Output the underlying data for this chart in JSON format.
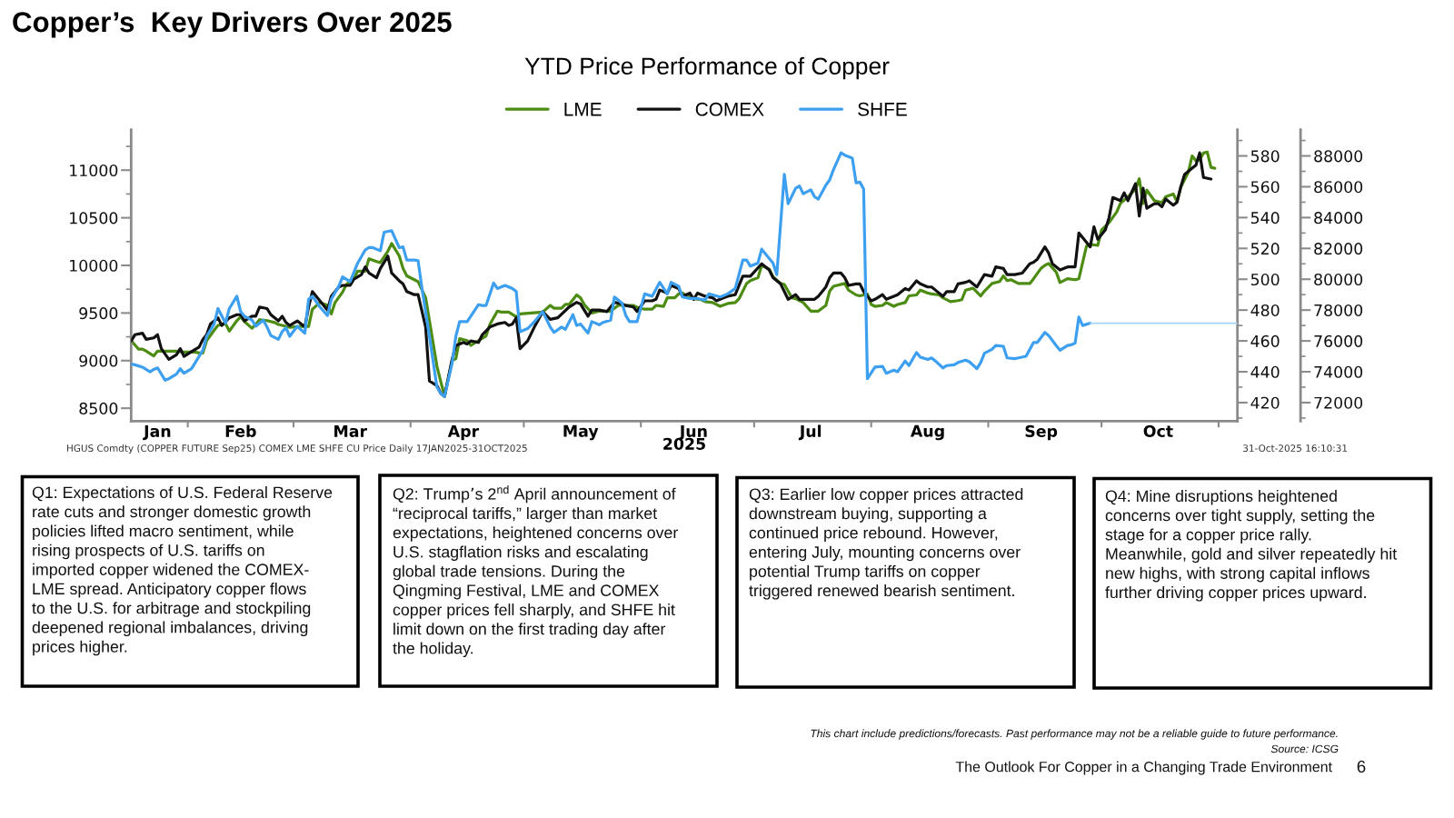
{
  "chart_data": {
    "type": "line",
    "title": "Copper’s  Key Drivers Over 2025",
    "subtitle": "YTD Price Performance of Copper",
    "xlabel": "2025",
    "legend": "top",
    "xlim": [
      "2025-01-17",
      "2025-11-06"
    ],
    "xticks": [
      {
        "value": "2025-01-24",
        "label": "Jan"
      },
      {
        "value": "2025-02-01",
        "label": null
      },
      {
        "value": "2025-02-15",
        "label": "Feb"
      },
      {
        "value": "2025-03-01",
        "label": null
      },
      {
        "value": "2025-03-16",
        "label": "Mar"
      },
      {
        "value": "2025-04-01",
        "label": null
      },
      {
        "value": "2025-04-15",
        "label": "Apr"
      },
      {
        "value": "2025-05-01",
        "label": null
      },
      {
        "value": "2025-05-16",
        "label": "May"
      },
      {
        "value": "2025-06-01",
        "label": null
      },
      {
        "value": "2025-06-15",
        "label": "Jun"
      },
      {
        "value": "2025-07-01",
        "label": null
      },
      {
        "value": "2025-07-16",
        "label": "Jul"
      },
      {
        "value": "2025-08-01",
        "label": null
      },
      {
        "value": "2025-08-16",
        "label": "Aug"
      },
      {
        "value": "2025-09-01",
        "label": null
      },
      {
        "value": "2025-09-15",
        "label": "Sep"
      },
      {
        "value": "2025-10-01",
        "label": null
      },
      {
        "value": "2025-10-16",
        "label": "Oct"
      },
      {
        "value": "2025-11-01",
        "label": null
      }
    ],
    "ylim": [
      8365,
      11425
    ],
    "yticks": [
      8500,
      {
        "value": 8750,
        "label": null
      },
      9000,
      {
        "value": 9250,
        "label": null
      },
      9500,
      {
        "value": 9750,
        "label": null
      },
      10000,
      {
        "value": 10250,
        "label": null
      },
      10500,
      {
        "value": 10750,
        "label": null
      },
      11000,
      {
        "value": 11250,
        "label": null
      }
    ],
    "y2lim": [
      408,
      597
    ],
    "y2ticks": [
      {
        "value": 410,
        "label": null
      },
      420,
      {
        "value": 430,
        "label": null
      },
      440,
      {
        "value": 450,
        "label": null
      },
      460,
      {
        "value": 470,
        "label": null
      },
      480,
      {
        "value": 490,
        "label": null
      },
      500,
      {
        "value": 510,
        "label": null
      },
      520,
      {
        "value": 530,
        "label": null
      },
      540,
      {
        "value": 550,
        "label": null
      },
      560,
      {
        "value": 570,
        "label": null
      },
      580,
      {
        "value": 590,
        "label": null
      }
    ],
    "y3lim": [
      70800,
      89700
    ],
    "y3ticks": [
      {
        "value": 71000,
        "label": null
      },
      72000,
      {
        "value": 73000,
        "label": null
      },
      74000,
      {
        "value": 75000,
        "label": null
      },
      76000,
      {
        "value": 77000,
        "label": null
      },
      78000,
      {
        "value": 79000,
        "label": null
      },
      80000,
      {
        "value": 81000,
        "label": null
      },
      82000,
      {
        "value": 83000,
        "label": null
      },
      84000,
      {
        "value": 85000,
        "label": null
      },
      86000,
      {
        "value": 87000,
        "label": null
      },
      88000,
      {
        "value": 89000,
        "label": null
      }
    ],
    "series": [
      {
        "name": "LME",
        "color": "#4d8c12",
        "axis": "y",
        "x": [
          "2025-01-17",
          "2025-01-19",
          "2025-01-20",
          "2025-01-21",
          "2025-01-23",
          "2025-01-24",
          "2025-01-26",
          "2025-01-29",
          "2025-01-31",
          "2025-02-03",
          "2025-02-04",
          "2025-02-05",
          "2025-02-06",
          "2025-02-08",
          "2025-02-09",
          "2025-02-11",
          "2025-02-12",
          "2025-02-14",
          "2025-02-15",
          "2025-02-16",
          "2025-02-18",
          "2025-02-19",
          "2025-02-20",
          "2025-02-22",
          "2025-02-24",
          "2025-02-25",
          "2025-02-27",
          "2025-02-28",
          "2025-03-03",
          "2025-03-05",
          "2025-03-06",
          "2025-03-08",
          "2025-03-10",
          "2025-03-11",
          "2025-03-12",
          "2025-03-14",
          "2025-03-15",
          "2025-03-17",
          "2025-03-18",
          "2025-03-20",
          "2025-03-21",
          "2025-03-23",
          "2025-03-24",
          "2025-03-26",
          "2025-03-27",
          "2025-03-29",
          "2025-03-30",
          "2025-03-31",
          "2025-04-02",
          "2025-04-03",
          "2025-04-05",
          "2025-04-08",
          "2025-04-09",
          "2025-04-10",
          "2025-04-12",
          "2025-04-13",
          "2025-04-14",
          "2025-04-16",
          "2025-04-17",
          "2025-04-19",
          "2025-04-21",
          "2025-04-22",
          "2025-04-24",
          "2025-04-25",
          "2025-04-27",
          "2025-04-29",
          "2025-04-30",
          "2025-05-03",
          "2025-05-06",
          "2025-05-08",
          "2025-05-09",
          "2025-05-11",
          "2025-05-12",
          "2025-05-13",
          "2025-05-15",
          "2025-05-16",
          "2025-05-17",
          "2025-05-19",
          "2025-05-21",
          "2025-05-22",
          "2025-05-24",
          "2025-05-26",
          "2025-05-28",
          "2025-05-30",
          "2025-05-31",
          "2025-06-02",
          "2025-06-04",
          "2025-06-05",
          "2025-06-07",
          "2025-06-08",
          "2025-06-10",
          "2025-06-11",
          "2025-06-12",
          "2025-06-13",
          "2025-06-15",
          "2025-06-17",
          "2025-06-18",
          "2025-06-20",
          "2025-06-22",
          "2025-06-24",
          "2025-06-26",
          "2025-06-27",
          "2025-06-29",
          "2025-06-30",
          "2025-07-02",
          "2025-07-03",
          "2025-07-05",
          "2025-07-06",
          "2025-07-08",
          "2025-07-09",
          "2025-07-11",
          "2025-07-12",
          "2025-07-14",
          "2025-07-16",
          "2025-07-17",
          "2025-07-18",
          "2025-07-20",
          "2025-07-21",
          "2025-07-22",
          "2025-07-25",
          "2025-07-26",
          "2025-07-28",
          "2025-07-29",
          "2025-07-31",
          "2025-08-01",
          "2025-08-02",
          "2025-08-04",
          "2025-08-05",
          "2025-08-07",
          "2025-08-08",
          "2025-08-10",
          "2025-08-11",
          "2025-08-13",
          "2025-08-14",
          "2025-08-16",
          "2025-08-17",
          "2025-08-19",
          "2025-08-20",
          "2025-08-22",
          "2025-08-24",
          "2025-08-25",
          "2025-08-26",
          "2025-08-28",
          "2025-08-30",
          "2025-08-31",
          "2025-09-02",
          "2025-09-04",
          "2025-09-05",
          "2025-09-06",
          "2025-09-07",
          "2025-09-09",
          "2025-09-11",
          "2025-09-12",
          "2025-09-13",
          "2025-09-15",
          "2025-09-16",
          "2025-09-17",
          "2025-09-19",
          "2025-09-20",
          "2025-09-22",
          "2025-09-24",
          "2025-09-25",
          "2025-09-27",
          "2025-09-28",
          "2025-09-30",
          "2025-10-01",
          "2025-10-03",
          "2025-10-05",
          "2025-10-06",
          "2025-10-08",
          "2025-10-10",
          "2025-10-11",
          "2025-10-12",
          "2025-10-13",
          "2025-10-15",
          "2025-10-16",
          "2025-10-17",
          "2025-10-18",
          "2025-10-20",
          "2025-10-21",
          "2025-10-22",
          "2025-10-24",
          "2025-10-25",
          "2025-10-26",
          "2025-10-27",
          "2025-10-28",
          "2025-10-29",
          "2025-10-30",
          "2025-10-31"
        ],
        "values": [
          9210,
          9120,
          9120,
          9100,
          9050,
          9100,
          9100,
          9100,
          9090,
          9090,
          9080,
          9080,
          9210,
          9320,
          9370,
          9390,
          9310,
          9420,
          9460,
          9410,
          9340,
          9380,
          9430,
          9420,
          9400,
          9380,
          9360,
          9350,
          9360,
          9360,
          9540,
          9610,
          9580,
          9490,
          9610,
          9720,
          9800,
          9860,
          9940,
          9940,
          10070,
          10040,
          10030,
          10150,
          10230,
          10100,
          9970,
          9890,
          9850,
          9830,
          9660,
          8940,
          8780,
          8630,
          9000,
          9020,
          9230,
          9210,
          9160,
          9210,
          9260,
          9380,
          9520,
          9510,
          9510,
          9460,
          9490,
          9500,
          9510,
          9580,
          9550,
          9550,
          9590,
          9590,
          9690,
          9660,
          9590,
          9500,
          9520,
          9520,
          9520,
          9580,
          9580,
          9580,
          9560,
          9540,
          9540,
          9580,
          9570,
          9660,
          9660,
          9700,
          9710,
          9680,
          9650,
          9640,
          9620,
          9610,
          9570,
          9600,
          9610,
          9650,
          9810,
          9840,
          9870,
          10000,
          9960,
          9880,
          9810,
          9800,
          9660,
          9650,
          9610,
          9520,
          9520,
          9520,
          9580,
          9730,
          9780,
          9810,
          9740,
          9690,
          9680,
          9700,
          9590,
          9570,
          9580,
          9610,
          9570,
          9590,
          9610,
          9680,
          9690,
          9740,
          9710,
          9700,
          9690,
          9660,
          9620,
          9630,
          9640,
          9740,
          9760,
          9680,
          9730,
          9810,
          9830,
          9890,
          9840,
          9850,
          9810,
          9810,
          9810,
          9860,
          9970,
          10000,
          10020,
          9930,
          9820,
          9860,
          9850,
          9860,
          10200,
          10220,
          10210,
          10370,
          10450,
          10560,
          10650,
          10720,
          10800,
          10910,
          10650,
          10790,
          10680,
          10670,
          10660,
          10720,
          10750,
          10670,
          10820,
          10980,
          11150,
          11100,
          11110,
          11180,
          11190,
          11030,
          11020
        ]
      },
      {
        "name": "COMEX",
        "color": "#111111",
        "axis": "y2",
        "x": [
          "2025-01-17",
          "2025-01-18",
          "2025-01-20",
          "2025-01-21",
          "2025-01-23",
          "2025-01-24",
          "2025-01-25",
          "2025-01-27",
          "2025-01-29",
          "2025-01-30",
          "2025-01-31",
          "2025-02-02",
          "2025-02-04",
          "2025-02-05",
          "2025-02-06",
          "2025-02-07",
          "2025-02-09",
          "2025-02-10",
          "2025-02-12",
          "2025-02-14",
          "2025-02-15",
          "2025-02-16",
          "2025-02-18",
          "2025-02-19",
          "2025-02-20",
          "2025-02-22",
          "2025-02-23",
          "2025-02-25",
          "2025-02-26",
          "2025-02-27",
          "2025-02-28",
          "2025-03-02",
          "2025-03-04",
          "2025-03-05",
          "2025-03-06",
          "2025-03-08",
          "2025-03-10",
          "2025-03-11",
          "2025-03-13",
          "2025-03-14",
          "2025-03-16",
          "2025-03-17",
          "2025-03-19",
          "2025-03-20",
          "2025-03-21",
          "2025-03-23",
          "2025-03-24",
          "2025-03-26",
          "2025-03-27",
          "2025-03-29",
          "2025-03-30",
          "2025-03-31",
          "2025-04-02",
          "2025-04-03",
          "2025-04-05",
          "2025-04-06",
          "2025-04-08",
          "2025-04-09",
          "2025-04-10",
          "2025-04-12",
          "2025-04-13",
          "2025-04-15",
          "2025-04-16",
          "2025-04-17",
          "2025-04-19",
          "2025-04-20",
          "2025-04-22",
          "2025-04-24",
          "2025-04-26",
          "2025-04-27",
          "2025-04-28",
          "2025-04-29",
          "2025-04-30",
          "2025-05-02",
          "2025-05-04",
          "2025-05-06",
          "2025-05-08",
          "2025-05-10",
          "2025-05-13",
          "2025-05-15",
          "2025-05-16",
          "2025-05-18",
          "2025-05-19",
          "2025-05-21",
          "2025-05-23",
          "2025-05-25",
          "2025-05-27",
          "2025-05-28",
          "2025-05-30",
          "2025-05-31",
          "2025-06-02",
          "2025-06-04",
          "2025-06-05",
          "2025-06-06",
          "2025-06-08",
          "2025-06-09",
          "2025-06-11",
          "2025-06-12",
          "2025-06-14",
          "2025-06-15",
          "2025-06-16",
          "2025-06-18",
          "2025-06-20",
          "2025-06-21",
          "2025-06-23",
          "2025-06-24",
          "2025-06-26",
          "2025-06-28",
          "2025-06-30",
          "2025-07-03",
          "2025-07-05",
          "2025-07-06",
          "2025-07-08",
          "2025-07-10",
          "2025-07-12",
          "2025-07-13",
          "2025-07-15",
          "2025-07-17",
          "2025-07-18",
          "2025-07-20",
          "2025-07-21",
          "2025-07-22",
          "2025-07-24",
          "2025-07-25",
          "2025-07-26",
          "2025-07-28",
          "2025-07-29",
          "2025-07-30",
          "2025-08-01",
          "2025-08-02",
          "2025-08-04",
          "2025-08-05",
          "2025-08-07",
          "2025-08-08",
          "2025-08-10",
          "2025-08-11",
          "2025-08-13",
          "2025-08-14",
          "2025-08-16",
          "2025-08-17",
          "2025-08-18",
          "2025-08-20",
          "2025-08-21",
          "2025-08-23",
          "2025-08-24",
          "2025-08-26",
          "2025-08-27",
          "2025-08-29",
          "2025-08-30",
          "2025-08-31",
          "2025-09-02",
          "2025-09-03",
          "2025-09-05",
          "2025-09-06",
          "2025-09-08",
          "2025-09-10",
          "2025-09-12",
          "2025-09-13",
          "2025-09-14",
          "2025-09-16",
          "2025-09-17",
          "2025-09-18",
          "2025-09-20",
          "2025-09-22",
          "2025-09-24",
          "2025-09-25",
          "2025-09-27",
          "2025-09-28",
          "2025-09-29",
          "2025-09-30",
          "2025-10-02",
          "2025-10-03",
          "2025-10-04",
          "2025-10-06",
          "2025-10-07",
          "2025-10-08",
          "2025-10-10",
          "2025-10-11",
          "2025-10-12",
          "2025-10-13",
          "2025-10-15",
          "2025-10-16",
          "2025-10-17",
          "2025-10-18",
          "2025-10-20",
          "2025-10-21",
          "2025-10-22",
          "2025-10-23",
          "2025-10-25",
          "2025-10-26",
          "2025-10-27",
          "2025-10-28",
          "2025-10-30"
        ],
        "values": [
          460,
          464,
          465,
          461,
          462,
          464,
          455,
          448,
          451,
          455,
          450,
          453,
          456,
          461,
          464,
          471,
          475,
          470,
          475,
          477,
          477,
          473,
          476,
          476,
          482,
          481,
          477,
          473,
          476,
          472,
          470,
          473,
          469,
          482,
          492,
          486,
          480,
          489,
          495,
          496,
          496,
          500,
          503,
          508,
          504,
          501,
          507,
          515,
          504,
          499,
          497,
          492,
          490,
          490,
          469,
          434,
          431,
          426,
          424,
          448,
          457,
          459,
          458,
          460,
          459,
          464,
          469,
          471,
          472,
          470,
          471,
          475,
          455,
          460,
          470,
          479,
          474,
          475,
          482,
          485,
          484,
          476,
          480,
          480,
          479,
          485,
          484,
          483,
          482,
          479,
          486,
          486,
          487,
          493,
          491,
          496,
          494,
          489,
          491,
          487,
          491,
          489,
          488,
          486,
          488,
          489,
          490,
          502,
          502,
          510,
          506,
          501,
          497,
          487,
          490,
          487,
          487,
          487,
          489,
          495,
          501,
          504,
          504,
          501,
          496,
          497,
          497,
          492,
          486,
          487,
          490,
          487,
          489,
          490,
          494,
          493,
          499,
          497,
          495,
          495,
          493,
          489,
          492,
          492,
          497,
          498,
          499,
          495,
          499,
          503,
          502,
          508,
          507,
          503,
          503,
          504,
          510,
          511,
          513,
          521,
          517,
          510,
          506,
          508,
          508,
          530,
          524,
          521,
          534,
          526,
          532,
          540,
          553,
          551,
          556,
          551,
          562,
          541,
          559,
          546,
          549,
          549,
          547,
          552,
          548,
          550,
          560,
          568,
          572,
          574,
          582,
          566,
          565
        ]
      },
      {
        "name": "SHFE",
        "color": "#3d9ff0",
        "axis": "y3",
        "x": [
          "2025-01-17",
          "2025-01-18",
          "2025-01-20",
          "2025-01-22",
          "2025-01-23",
          "2025-01-24",
          "2025-01-26",
          "2025-01-27",
          "2025-01-29",
          "2025-01-30",
          "2025-01-31",
          "2025-02-02",
          "2025-02-03",
          "2025-02-05",
          "2025-02-06",
          "2025-02-08",
          "2025-02-09",
          "2025-02-11",
          "2025-02-12",
          "2025-02-14",
          "2025-02-15",
          "2025-02-16",
          "2025-02-18",
          "2025-02-19",
          "2025-02-21",
          "2025-02-22",
          "2025-02-23",
          "2025-02-25",
          "2025-02-26",
          "2025-02-27",
          "2025-02-28",
          "2025-03-02",
          "2025-03-04",
          "2025-03-05",
          "2025-03-06",
          "2025-03-08",
          "2025-03-10",
          "2025-03-11",
          "2025-03-13",
          "2025-03-14",
          "2025-03-16",
          "2025-03-17",
          "2025-03-18",
          "2025-03-20",
          "2025-03-21",
          "2025-03-22",
          "2025-03-24",
          "2025-03-25",
          "2025-03-27",
          "2025-03-29",
          "2025-03-30",
          "2025-03-31",
          "2025-04-02",
          "2025-04-03",
          "2025-04-04",
          "2025-04-06",
          "2025-04-08",
          "2025-04-09",
          "2025-04-10",
          "2025-04-12",
          "2025-04-13",
          "2025-04-14",
          "2025-04-16",
          "2025-04-19",
          "2025-04-20",
          "2025-04-21",
          "2025-04-23",
          "2025-04-24",
          "2025-04-26",
          "2025-04-28",
          "2025-04-29",
          "2025-04-30",
          "2025-05-02",
          "2025-05-04",
          "2025-05-06",
          "2025-05-08",
          "2025-05-09",
          "2025-05-11",
          "2025-05-12",
          "2025-05-14",
          "2025-05-15",
          "2025-05-16",
          "2025-05-18",
          "2025-05-19",
          "2025-05-21",
          "2025-05-22",
          "2025-05-24",
          "2025-05-25",
          "2025-05-27",
          "2025-05-28",
          "2025-05-29",
          "2025-05-31",
          "2025-06-02",
          "2025-06-04",
          "2025-06-06",
          "2025-06-08",
          "2025-06-09",
          "2025-06-11",
          "2025-06-12",
          "2025-06-14",
          "2025-06-16",
          "2025-06-18",
          "2025-06-19",
          "2025-06-22",
          "2025-06-24",
          "2025-06-26",
          "2025-06-28",
          "2025-06-29",
          "2025-06-30",
          "2025-07-02",
          "2025-07-03",
          "2025-07-06",
          "2025-07-07",
          "2025-07-09",
          "2025-07-10",
          "2025-07-12",
          "2025-07-13",
          "2025-07-14",
          "2025-07-16",
          "2025-07-17",
          "2025-07-18",
          "2025-07-20",
          "2025-07-21",
          "2025-07-22",
          "2025-07-24",
          "2025-07-25",
          "2025-07-27",
          "2025-07-28",
          "2025-07-29",
          "2025-07-30",
          "2025-07-31",
          "2025-08-02",
          "2025-08-04",
          "2025-08-05",
          "2025-08-07",
          "2025-08-08",
          "2025-08-10",
          "2025-08-11",
          "2025-08-13",
          "2025-08-14",
          "2025-08-16",
          "2025-08-17",
          "2025-08-18",
          "2025-08-20",
          "2025-08-21",
          "2025-08-23",
          "2025-08-24",
          "2025-08-26",
          "2025-08-27",
          "2025-08-29",
          "2025-08-30",
          "2025-08-31",
          "2025-09-02",
          "2025-09-03",
          "2025-09-05",
          "2025-09-06",
          "2025-09-08",
          "2025-09-09",
          "2025-09-11",
          "2025-09-12",
          "2025-09-13",
          "2025-09-14",
          "2025-09-16",
          "2025-09-17",
          "2025-09-19",
          "2025-09-20",
          "2025-09-22",
          "2025-09-23",
          "2025-09-24",
          "2025-09-25",
          "2025-09-26",
          "2025-09-28"
        ],
        "values": [
          74500,
          74450,
          74300,
          74000,
          74150,
          74250,
          73450,
          73550,
          73850,
          74200,
          73900,
          74200,
          74600,
          75400,
          76300,
          77100,
          78100,
          77150,
          78100,
          78900,
          77900,
          77600,
          77350,
          76950,
          77350,
          76900,
          76350,
          76100,
          76600,
          76850,
          76300,
          76950,
          76500,
          78700,
          78900,
          78200,
          77650,
          78700,
          79550,
          80150,
          79850,
          80450,
          81050,
          81900,
          82050,
          82050,
          81850,
          83050,
          83150,
          82050,
          82100,
          81250,
          81250,
          81200,
          79450,
          76300,
          73000,
          72600,
          72400,
          74550,
          76300,
          77250,
          77250,
          78350,
          78300,
          78300,
          79750,
          79400,
          79600,
          79400,
          79200,
          76600,
          76800,
          77300,
          77900,
          76900,
          76550,
          76900,
          76750,
          77700,
          77000,
          77100,
          76500,
          77250,
          77050,
          77200,
          77350,
          78850,
          78450,
          77650,
          77250,
          77250,
          79050,
          78900,
          79800,
          79050,
          79800,
          79550,
          78850,
          78750,
          78750,
          78650,
          79050,
          78850,
          79050,
          79400,
          81250,
          81250,
          80850,
          81050,
          81950,
          81050,
          80300,
          86800,
          84900,
          85900,
          86050,
          85550,
          85800,
          85350,
          85200,
          86100,
          86450,
          87100,
          88200,
          88050,
          87850,
          86250,
          86300,
          85850,
          73550,
          74300,
          74350,
          73900,
          74100,
          74000,
          74700,
          74400,
          75250,
          74950,
          74800,
          74900,
          74700,
          74250,
          74400,
          74450,
          74600,
          74750,
          74650,
          74200,
          74600,
          75200,
          75450,
          75700,
          75650,
          74900,
          74850,
          74900,
          75000,
          75450,
          75900,
          75900,
          76550,
          76350,
          75700,
          75400,
          75700,
          75750,
          75850,
          77550,
          77000,
          77150
        ]
      },
      {
        "color": "#a6d3fa",
        "axis": "y3",
        "x": [
          "2025-09-28",
          "2025-11-06"
        ],
        "values": [
          77150,
          77150
        ]
      }
    ],
    "annotations": [
      "HGUS Comdty (COPPER FUTURE Sep25) COMEX LME SHFE CU Price Daily 17JAN2025-31OCT2025",
      "31-Oct-2025 16:10:31",
      "Q1: Expectations of U.S. Federal Reserve\nrate cuts and stronger domestic growth\npolicies lifted macro sentiment, while\nrising prospects of U.S. tariffs on\nimported copper widened the COMEX-\nLME spread. Anticipatory copper flows\nto the U.S. for arbitrage and stockpiling\ndeepened regional imbalances, driving\nprices higher.",
      "Q2: Trump’s 2$^{nd}$ April announcement of\n“reciprocal tariffs,” larger than market\nexpectations, heightened concerns over\nU.S. stagflation risks and escalating\nglobal trade tensions. During the\nQingming Festival, LME and COMEX\ncopper prices fell sharply, and SHFE hit\nlimit down on the first trading day after\nthe holiday.",
      "Q3: Earlier low copper prices attracted\ndownstream buying, supporting a\ncontinued price rebound. However,\nentering July, mounting concerns over\npotential Trump tariffs on copper\ntriggered renewed bearish sentiment.",
      "Q4: Mine disruptions heightened\nconcerns over tight supply, setting the\nstage for a copper price rally.\nMeanwhile, gold and silver repeatedly hit\nnew highs, with strong capital inflows\nfurther driving copper prices upward.",
      "This chart include predictions/forecasts. Past performance may not be a reliable guide to future performance.",
      "Source: ICSG",
      "The Outlook For Copper in a Changing Trade Environment",
      "6"
    ]
  }
}
